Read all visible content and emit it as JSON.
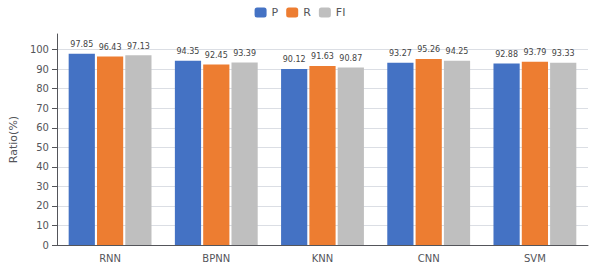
{
  "chart_data": {
    "type": "bar",
    "categories": [
      "RNN",
      "BPNN",
      "KNN",
      "CNN",
      "SVM"
    ],
    "series": [
      {
        "name": "P",
        "color": "#4472C4",
        "values": [
          97.85,
          94.35,
          90.12,
          93.27,
          92.88
        ]
      },
      {
        "name": "R",
        "color": "#ED7D31",
        "values": [
          96.43,
          92.45,
          91.63,
          95.26,
          93.79
        ]
      },
      {
        "name": "FI",
        "color": "#BFBFBF",
        "values": [
          97.13,
          93.39,
          90.87,
          94.25,
          93.33
        ]
      }
    ],
    "ylabel": "Ratio(%)",
    "ylim": [
      0,
      108
    ],
    "yticks": [
      0,
      10,
      20,
      30,
      40,
      50,
      60,
      70,
      80,
      90,
      100
    ],
    "grid": true,
    "legend": "top",
    "data_labels": true
  }
}
